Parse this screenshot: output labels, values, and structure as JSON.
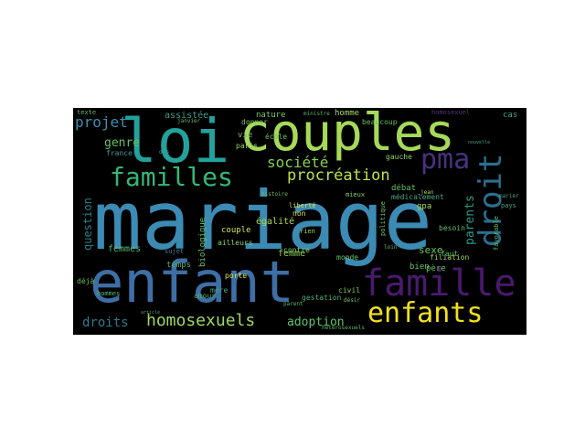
{
  "cloud": {
    "background": "#000000",
    "words": {
      "mariage": "mariage",
      "enfant": "enfant",
      "loi": "loi",
      "couples": "couples",
      "famille": "famille",
      "enfants": "enfants",
      "familles": "familles",
      "pma": "pma",
      "droit": "droit",
      "homosexuels": "homosexuels",
      "projet": "projet",
      "procreation": "procréation",
      "societe": "société",
      "adoption": "adoption",
      "droits": "droits",
      "genre": "genre",
      "femmes": "femmes",
      "parents": "parents",
      "question": "question",
      "sexe": "sexe",
      "egalite": "égalité",
      "femme": "femme",
      "couple": "couple",
      "pere": "père",
      "assistee": "assistée",
      "nature": "nature",
      "homme": "homme",
      "cas": "cas",
      "france": "france",
      "vie": "vie",
      "temps": "temps",
      "biologique": "biologique",
      "debat": "débat",
      "non": "non",
      "contre": "contre",
      "bien": "bien",
      "faut": "faut",
      "gauche": "gauche",
      "gpa": "gpa",
      "filiation": "filiation",
      "medicalement": "médicalement",
      "mere": "mère",
      "hommes": "hommes",
      "porte": "porte",
      "amour": "amour",
      "deja": "déjà",
      "civil": "civil",
      "monde": "monde",
      "gestation": "gestation",
      "paris": "paris",
      "ecole": "école",
      "beaucoup": "beaucoup",
      "mieux": "mieux",
      "besoin": "besoin",
      "liberte": "liberté",
      "rien": "rien",
      "parent": "parent",
      "texte": "texte",
      "homosexuel": "homosexuel",
      "donner": "donner",
      "ailleurs": "ailleurs",
      "sujet": "sujet",
      "pays": "pays",
      "marier": "marier",
      "politique": "politique",
      "favorable": "favorable",
      "histoire": "histoire",
      "jean": "jean",
      "ministre": "ministre",
      "loin": "loin",
      "desir": "désir",
      "don": "don",
      "janvier": "janvier",
      "article": "article",
      "heterosexuels": "hétérosexuels",
      "nouvelle": "nouvelle"
    }
  }
}
